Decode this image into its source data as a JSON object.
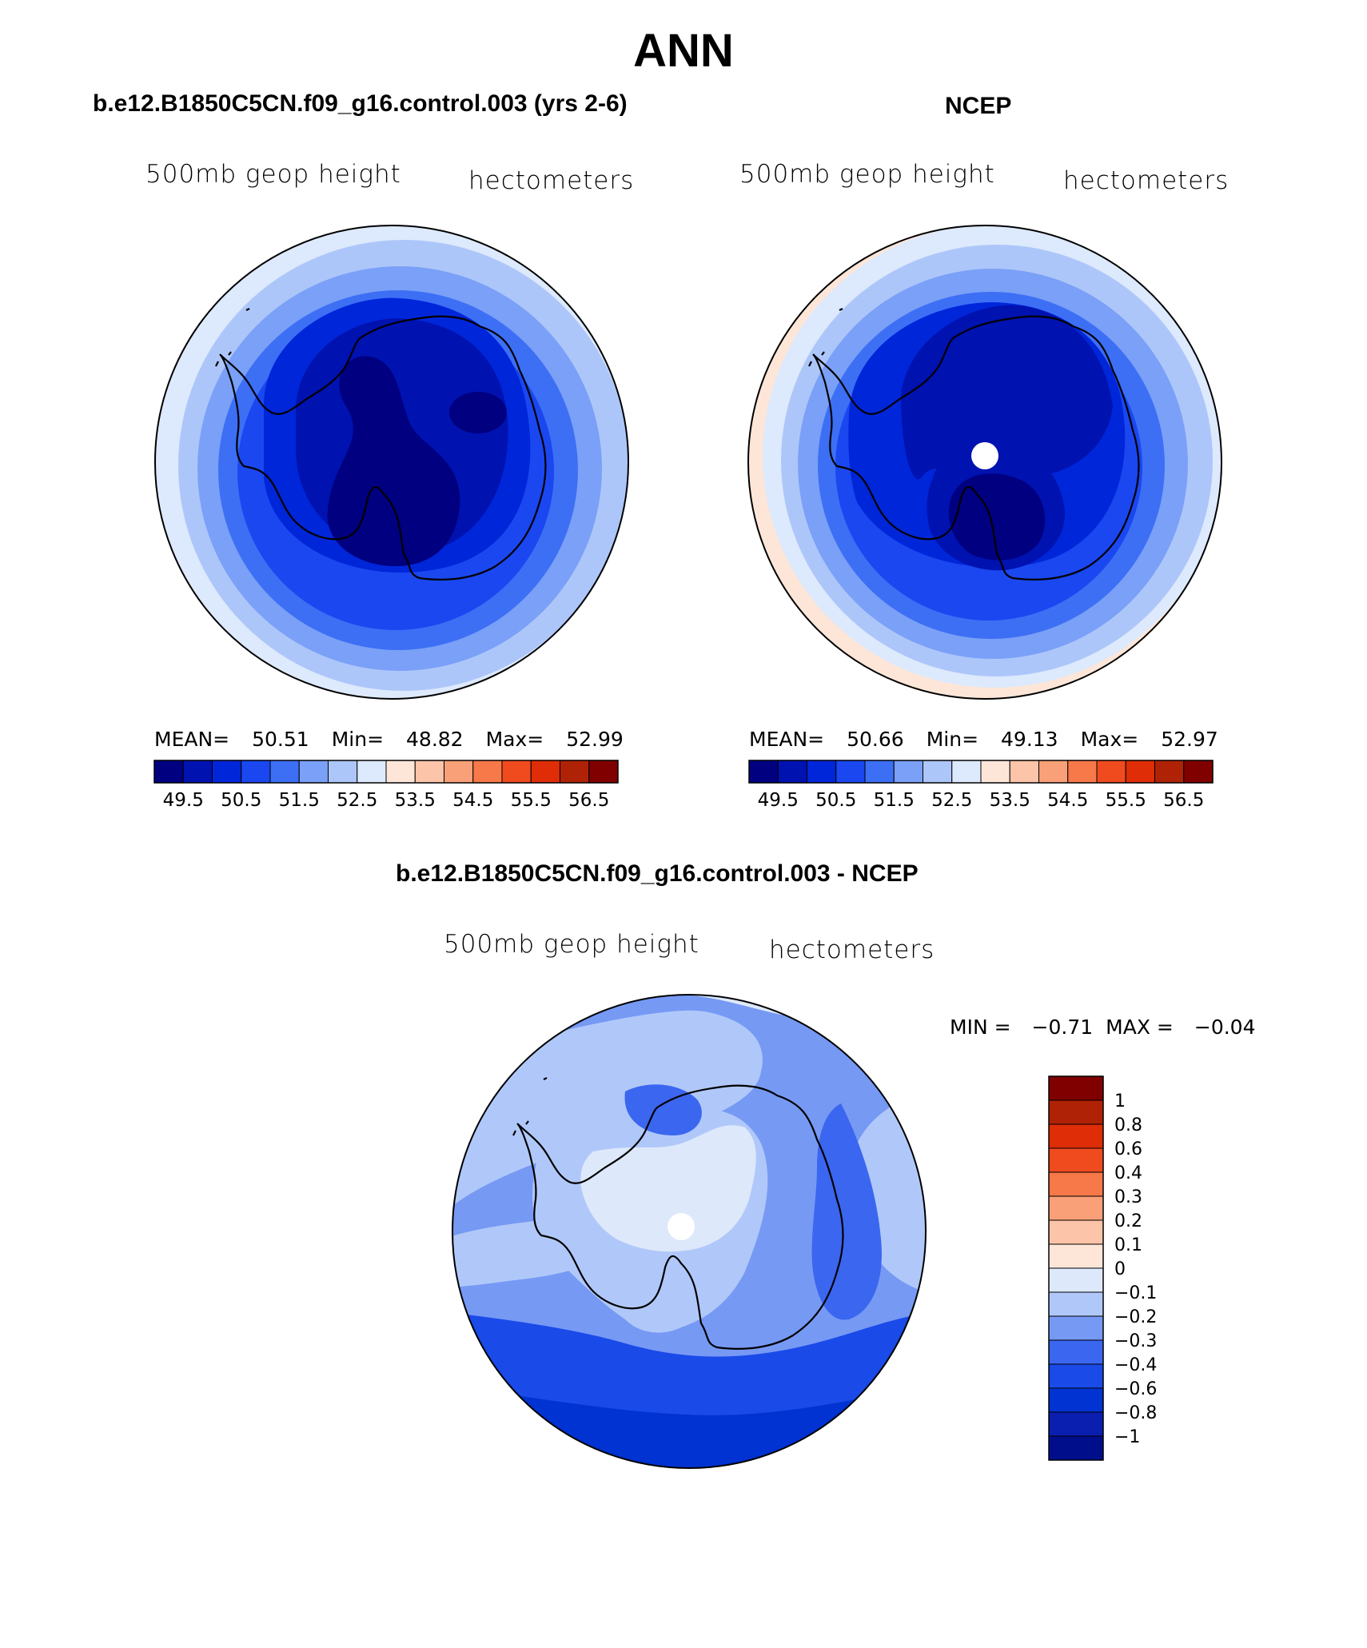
{
  "title": "ANN",
  "colors": {
    "map_scale": [
      "#000080",
      "#0012b0",
      "#0026d9",
      "#1a47f0",
      "#3d6ff5",
      "#7aa0f7",
      "#adc6fa",
      "#dde9fc",
      "#fde6d8",
      "#fcc4a8",
      "#f9a078",
      "#f77848",
      "#ef4b1f",
      "#de2d07",
      "#b02205",
      "#800000"
    ],
    "diff_scale": [
      "#000e8c",
      "#0a1fb0",
      "#0033d1",
      "#1a4ae8",
      "#3b66ef",
      "#7699f4",
      "#b0c8f9",
      "#dde8fb",
      "#fde6d8",
      "#fcc4a8",
      "#f9a078",
      "#f77848",
      "#ef4b1f",
      "#de2d07",
      "#b02205",
      "#800000"
    ]
  },
  "chart_data": [
    {
      "type": "heatmap",
      "id": "model",
      "title": "b.e12.B1850C5CN.f09_g16.control.003 (yrs 2-6)",
      "variable": "500mb geop height",
      "units": "hectometers",
      "projection": "south-polar-stereographic",
      "stats": {
        "mean_label": "MEAN=",
        "mean": "50.51",
        "min_label": "Min=",
        "min": "48.82",
        "max_label": "Max=",
        "max": "52.99"
      },
      "colorbar": {
        "orientation": "horizontal",
        "levels": [
          "49.5",
          "50.5",
          "51.5",
          "52.5",
          "53.5",
          "54.5",
          "55.5",
          "56.5"
        ]
      },
      "contour_levels": [
        49.5,
        50.0,
        50.5,
        51.0,
        51.5,
        52.0,
        52.5,
        53.0
      ],
      "rings_outer_to_center": [
        53.0,
        52.5,
        52.0,
        51.5,
        51.0,
        50.5,
        50.0,
        49.5
      ]
    },
    {
      "type": "heatmap",
      "id": "obs",
      "title": "NCEP",
      "variable": "500mb geop height",
      "units": "hectometers",
      "projection": "south-polar-stereographic",
      "stats": {
        "mean_label": "MEAN=",
        "mean": "50.66",
        "min_label": "Min=",
        "min": "49.13",
        "max_label": "Max=",
        "max": "52.97"
      },
      "colorbar": {
        "orientation": "horizontal",
        "levels": [
          "49.5",
          "50.5",
          "51.5",
          "52.5",
          "53.5",
          "54.5",
          "55.5",
          "56.5"
        ]
      },
      "contour_levels": [
        49.5,
        50.0,
        50.5,
        51.0,
        51.5,
        52.0,
        52.5,
        53.0
      ],
      "rings_outer_to_center": [
        53.0,
        52.5,
        52.0,
        51.5,
        51.0,
        50.5,
        50.0,
        49.5
      ]
    },
    {
      "type": "heatmap",
      "id": "diff",
      "title": "b.e12.B1850C5CN.f09_g16.control.003 - NCEP",
      "variable": "500mb geop height",
      "units": "hectometers",
      "projection": "south-polar-stereographic",
      "stats": {
        "min_label": "MIN =",
        "min": "−0.71",
        "max_label": "MAX =",
        "max": "−0.04"
      },
      "colorbar": {
        "orientation": "vertical",
        "levels": [
          "1",
          "0.8",
          "0.6",
          "0.4",
          "0.3",
          "0.2",
          "0.1",
          "0",
          "−0.1",
          "−0.2",
          "−0.3",
          "−0.4",
          "−0.6",
          "−0.8",
          "−1"
        ]
      },
      "contour_levels": [
        -1,
        -0.8,
        -0.6,
        -0.4,
        -0.3,
        -0.2,
        -0.1,
        0,
        0.1,
        0.2,
        0.3,
        0.4,
        0.6,
        0.8,
        1
      ]
    }
  ]
}
